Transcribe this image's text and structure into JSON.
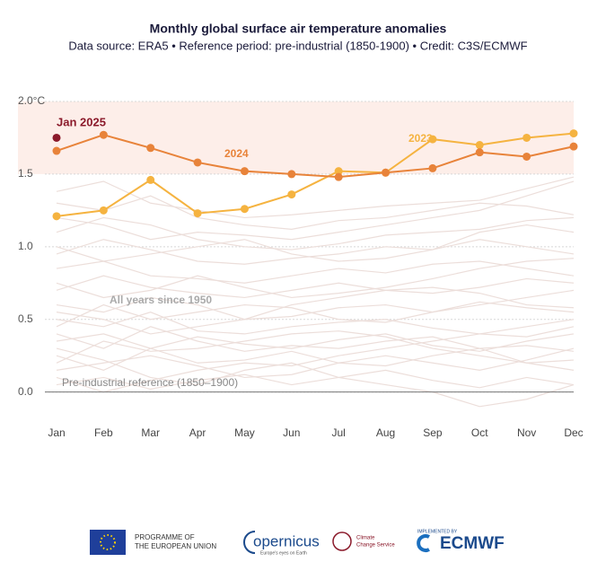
{
  "chart_data": {
    "type": "line",
    "title": "Monthly global surface air temperature anomalies",
    "subtitle": "Data source: ERA5 • Reference period: pre-industrial (1850-1900) • Credit: C3S/ECMWF",
    "categories": [
      "Jan",
      "Feb",
      "Mar",
      "Apr",
      "May",
      "Jun",
      "Jul",
      "Aug",
      "Sep",
      "Oct",
      "Nov",
      "Dec"
    ],
    "ylim": [
      -0.2,
      2.0
    ],
    "yticks": [
      {
        "value": 0,
        "label": "0.0"
      },
      0.5,
      {
        "value": 1,
        "label": "1.0"
      },
      {
        "value": 1.5,
        "label": "1.5"
      },
      {
        "value": 2,
        "label": "2.0°C"
      }
    ],
    "shaded_range": [
      1.5,
      2.0
    ],
    "shaded_color": "#fdeee9",
    "reference_line": {
      "value": 0,
      "label": "Pre-industrial reference (1850–1900)"
    },
    "background": {
      "label": "All years since 1950",
      "color": "#ecdeda",
      "values": [
        [
          0.05,
          0.1,
          0.02,
          0.08,
          0.12,
          0.05,
          0.1,
          0.15,
          0.08,
          0.03,
          0.1,
          0.05
        ],
        [
          0.25,
          0.15,
          0.3,
          0.2,
          0.22,
          0.28,
          0.2,
          0.18,
          0.25,
          0.3,
          0.2,
          0.22
        ],
        [
          0.35,
          0.4,
          0.3,
          0.38,
          0.33,
          0.3,
          0.36,
          0.4,
          0.32,
          0.28,
          0.35,
          0.4
        ],
        [
          0.5,
          0.45,
          0.55,
          0.42,
          0.4,
          0.45,
          0.48,
          0.5,
          0.44,
          0.4,
          0.38,
          0.45
        ],
        [
          0.15,
          0.2,
          0.25,
          0.18,
          0.1,
          0.12,
          0.2,
          0.25,
          0.2,
          0.15,
          0.22,
          0.3
        ],
        [
          0.6,
          0.55,
          0.65,
          0.6,
          0.5,
          0.52,
          0.58,
          0.6,
          0.55,
          0.62,
          0.58,
          0.55
        ],
        [
          0.7,
          0.8,
          0.72,
          0.68,
          0.65,
          0.7,
          0.75,
          0.7,
          0.68,
          0.72,
          0.78,
          0.75
        ],
        [
          0.85,
          0.9,
          0.8,
          0.78,
          0.75,
          0.8,
          0.85,
          0.82,
          0.88,
          0.9,
          0.85,
          0.8
        ],
        [
          0.95,
          1.05,
          0.98,
          0.9,
          0.88,
          0.92,
          0.95,
          1.0,
          0.98,
          1.05,
          1.0,
          0.95
        ],
        [
          1.1,
          1.2,
          1.15,
          1.05,
          1.0,
          0.98,
          1.02,
          1.08,
          1.1,
          1.12,
          1.18,
          1.2
        ],
        [
          1.3,
          1.25,
          1.35,
          1.2,
          1.15,
          1.12,
          1.18,
          1.2,
          1.25,
          1.3,
          1.28,
          1.22
        ],
        [
          0.3,
          0.22,
          0.1,
          0.05,
          0.15,
          0.2,
          0.1,
          0.05,
          0.0,
          -0.1,
          -0.05,
          0.05
        ],
        [
          0.4,
          0.3,
          0.45,
          0.35,
          0.28,
          0.32,
          0.3,
          0.35,
          0.38,
          0.3,
          0.32,
          0.28
        ],
        [
          0.45,
          0.6,
          0.5,
          0.55,
          0.6,
          0.58,
          0.5,
          0.48,
          0.55,
          0.6,
          0.65,
          0.7
        ],
        [
          0.75,
          0.65,
          0.7,
          0.8,
          0.72,
          0.65,
          0.68,
          0.72,
          0.78,
          0.85,
          0.9,
          0.92
        ],
        [
          1.0,
          0.9,
          0.95,
          1.0,
          1.05,
          0.95,
          0.9,
          0.92,
          0.98,
          1.1,
          1.15,
          1.1
        ],
        [
          0.2,
          0.35,
          0.28,
          0.3,
          0.35,
          0.4,
          0.42,
          0.38,
          0.3,
          0.25,
          0.2,
          0.15
        ],
        [
          0.1,
          0.0,
          0.08,
          0.15,
          0.2,
          0.18,
          0.25,
          0.3,
          0.35,
          0.4,
          0.45,
          0.5
        ],
        [
          0.55,
          0.5,
          0.4,
          0.45,
          0.5,
          0.6,
          0.65,
          0.7,
          0.72,
          0.68,
          0.6,
          0.58
        ],
        [
          1.2,
          1.15,
          1.05,
          1.1,
          1.08,
          1.05,
          1.1,
          1.15,
          1.2,
          1.25,
          1.35,
          1.45
        ],
        [
          1.38,
          1.45,
          1.3,
          1.25,
          1.2,
          1.22,
          1.25,
          1.28,
          1.3,
          1.32,
          1.4,
          1.48
        ]
      ]
    },
    "series": [
      {
        "name": "2023",
        "color": "#f5b340",
        "values": [
          1.21,
          1.25,
          1.46,
          1.23,
          1.26,
          1.36,
          1.52,
          1.51,
          1.74,
          1.7,
          1.75,
          1.78
        ]
      },
      {
        "name": "2024",
        "color": "#e8833a",
        "values": [
          1.66,
          1.77,
          1.68,
          1.58,
          1.52,
          1.5,
          1.48,
          1.51,
          1.54,
          1.65,
          1.62,
          1.69
        ]
      },
      {
        "name": "Jan 2025",
        "color": "#8b1a2b",
        "values": [
          1.75,
          null,
          null,
          null,
          null,
          null,
          null,
          null,
          null,
          null,
          null,
          null
        ]
      }
    ],
    "footer": [
      "PROGRAMME OF",
      "THE EUROPEAN UNION",
      "opernicus",
      "Europe's eyes on Earth",
      "Climate",
      "Change Service",
      "IMPLEMENTED BY",
      "ECMWF"
    ]
  }
}
